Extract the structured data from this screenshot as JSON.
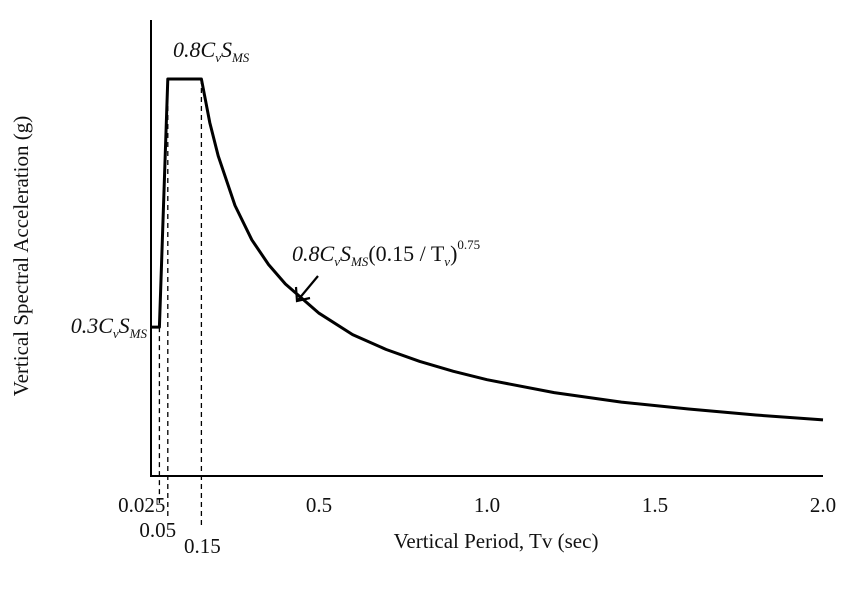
{
  "chart_data": {
    "type": "line",
    "title": "",
    "xlabel": "Vertical Period, Tv (sec)",
    "ylabel": "Vertical Spectral Acceleration (g)",
    "xlim": [
      0,
      2.0
    ],
    "ylim": [
      0,
      0.9
    ],
    "grid": false,
    "x_ticks": [
      {
        "value": 0.025,
        "label": "0.025"
      },
      {
        "value": 0.05,
        "label": "0.05"
      },
      {
        "value": 0.15,
        "label": "0.15"
      },
      {
        "value": 0.5,
        "label": "0.5"
      },
      {
        "value": 1.0,
        "label": "1.0"
      },
      {
        "value": 1.5,
        "label": "1.5"
      },
      {
        "value": 2.0,
        "label": "2.0"
      }
    ],
    "y_labels": [
      {
        "value": 0.3,
        "base": "0.3C",
        "sub1": "v",
        "mid": "S",
        "sub2": "MS"
      },
      {
        "value": 0.8,
        "base": "0.8C",
        "sub1": "v",
        "mid": "S",
        "sub2": "MS"
      }
    ],
    "dashed_guides_x": [
      0.025,
      0.05,
      0.15
    ],
    "series": [
      {
        "x": [
          0.0,
          0.025,
          0.05,
          0.15,
          0.175,
          0.2,
          0.25,
          0.3,
          0.35,
          0.4,
          0.5,
          0.6,
          0.7,
          0.8,
          0.9,
          1.0,
          1.2,
          1.4,
          1.6,
          1.8,
          2.0
        ],
        "y": [
          0.3,
          0.3,
          0.8,
          0.8,
          0.712,
          0.645,
          0.545,
          0.476,
          0.426,
          0.387,
          0.328,
          0.285,
          0.255,
          0.231,
          0.211,
          0.194,
          0.168,
          0.149,
          0.135,
          0.123,
          0.113
        ]
      }
    ],
    "annotation": {
      "x": 0.43,
      "y": 0.36,
      "base": "0.8C",
      "sub1": "v",
      "mid": "S",
      "sub2": "MS",
      "tail": "(0.15 / T",
      "sub3": "v",
      "close": ")",
      "sup": "0.75"
    }
  }
}
